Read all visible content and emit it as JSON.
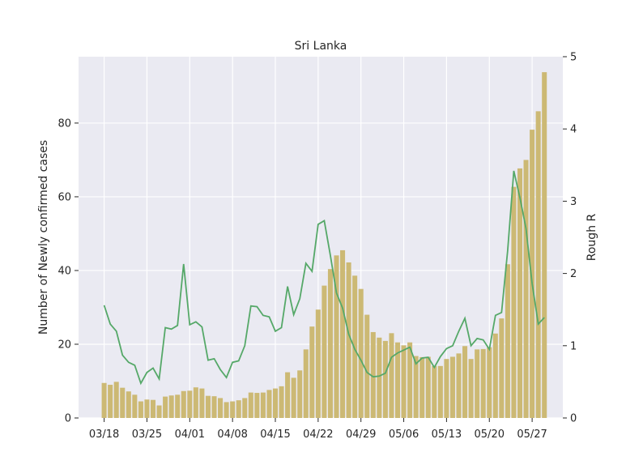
{
  "chart_data": {
    "type": "bar+line",
    "title": "Sri Lanka",
    "xlabel": "",
    "ylabel": "Number of Newly confirmed cases",
    "y2label": "Rough R",
    "ylim": [
      0,
      98
    ],
    "y2lim": [
      0,
      5
    ],
    "yticks": [
      0,
      20,
      40,
      60,
      80
    ],
    "y2ticks": [
      0,
      1,
      2,
      3,
      4,
      5
    ],
    "x_tick_labels": [
      {
        "day": 0,
        "label": "03/18"
      },
      {
        "day": 7,
        "label": "03/25"
      },
      {
        "day": 14,
        "label": "04/01"
      },
      {
        "day": 21,
        "label": "04/08"
      },
      {
        "day": 28,
        "label": "04/15"
      },
      {
        "day": 35,
        "label": "04/22"
      },
      {
        "day": 42,
        "label": "04/29"
      },
      {
        "day": 49,
        "label": "05/06"
      },
      {
        "day": 56,
        "label": "05/13"
      },
      {
        "day": 63,
        "label": "05/20"
      },
      {
        "day": 70,
        "label": "05/27"
      }
    ],
    "grid": true,
    "colors": {
      "bars": "#ccb974",
      "line": "#55a868",
      "plot_bg": "#eaeaf2",
      "grid": "#ffffff",
      "text": "#262626"
    },
    "series": [
      {
        "kind": "bar",
        "axis": "left",
        "values": [
          9.5,
          9,
          9.8,
          8.2,
          7.2,
          6.3,
          4.5,
          5,
          4.9,
          3.4,
          5.8,
          6.1,
          6.3,
          7.3,
          7.4,
          8.3,
          8,
          6,
          5.9,
          5.4,
          4.3,
          4.5,
          4.8,
          5.4,
          6.9,
          6.8,
          6.9,
          7.6,
          8,
          8.6,
          12.4,
          10.9,
          12.9,
          18.6,
          24.8,
          29.4,
          35.9,
          40.4,
          44.1,
          45.5,
          42.2,
          38.6,
          35,
          28,
          23.3,
          21.8,
          20.9,
          23,
          20.5,
          19.7,
          20.5,
          16.8,
          16.5,
          16.6,
          14.1,
          14.1,
          16,
          16.6,
          17.5,
          19.5,
          16,
          18.6,
          18.7,
          19.2,
          22.9,
          27,
          41.7,
          62.7,
          67.7,
          70,
          78.2,
          83.2,
          93.8
        ]
      },
      {
        "kind": "line",
        "axis": "right",
        "values": [
          1.56,
          1.3,
          1.2,
          0.87,
          0.77,
          0.73,
          0.48,
          0.63,
          0.69,
          0.54,
          1.25,
          1.23,
          1.28,
          2.13,
          1.29,
          1.33,
          1.26,
          0.8,
          0.82,
          0.67,
          0.56,
          0.77,
          0.79,
          1,
          1.55,
          1.54,
          1.42,
          1.4,
          1.2,
          1.25,
          1.82,
          1.43,
          1.65,
          2.14,
          2.03,
          2.68,
          2.73,
          2.25,
          1.73,
          1.52,
          1.16,
          0.95,
          0.8,
          0.63,
          0.57,
          0.58,
          0.62,
          0.84,
          0.9,
          0.94,
          0.98,
          0.75,
          0.83,
          0.84,
          0.7,
          0.85,
          0.96,
          1,
          1.2,
          1.38,
          1,
          1.1,
          1.08,
          0.95,
          1.42,
          1.46,
          2.32,
          3.42,
          3.05,
          2.62,
          1.86,
          1.3,
          1.39
        ]
      }
    ]
  }
}
